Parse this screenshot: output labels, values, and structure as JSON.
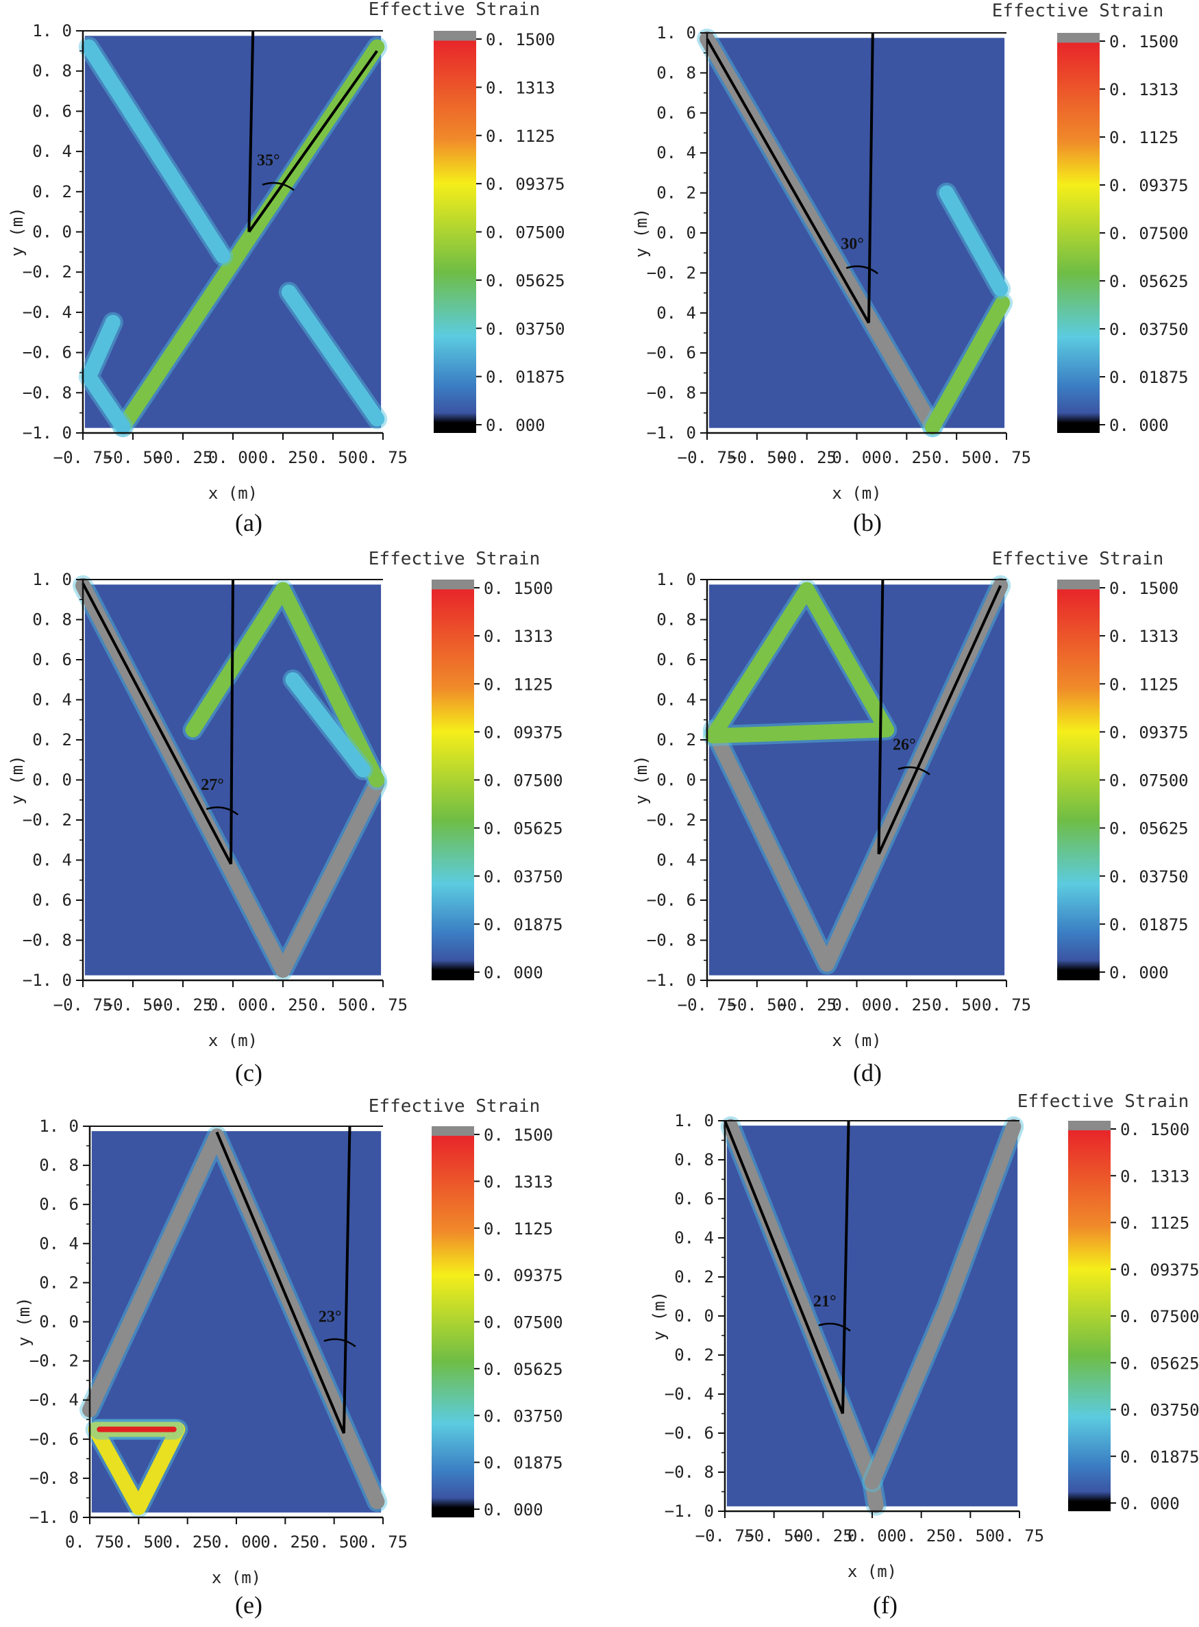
{
  "colors": {
    "background": "#3b55a3",
    "band_gray": "#8c8c8c",
    "band_green": "#7cc246",
    "band_cyan": "#55c0de",
    "band_yellow": "#e8e020",
    "band_red": "#e02020",
    "reference_line": "#000000",
    "colorbar_stops": [
      "#8a8a8a",
      "#e8262a",
      "#f08a2a",
      "#f5ee1a",
      "#6fbd45",
      "#5ccbe0",
      "#3b7fc4",
      "#3b55a3",
      "#000000"
    ]
  },
  "chart_data": [
    {
      "type": "heatmap",
      "panel": "(a)",
      "colorbar_title": "Effective Strain",
      "xlabel": "x (m)",
      "ylabel": "y (m)",
      "xlim": [
        -0.75,
        0.75
      ],
      "ylim": [
        -1.0,
        1.0
      ],
      "xticks": [
        "−0. 75",
        "−0. 50",
        "−0. 25",
        "0. 00",
        "0. 25",
        "0. 50",
        "0. 75"
      ],
      "yticks": [
        "1. 0",
        "0. 8",
        "0. 6",
        "0. 4",
        "0. 2",
        "0. 0",
        "−0. 2",
        "−0. 4",
        "−0. 6",
        "−0. 8",
        "−1. 0"
      ],
      "colorbar_ticks": [
        "0. 1500",
        "0. 1313",
        "0. 1125",
        "0. 09375",
        "0. 07500",
        "0. 05625",
        "0. 03750",
        "0. 01875",
        "0. 000"
      ],
      "colorbar_range": [
        0.0,
        0.15
      ],
      "angle_label": "35°",
      "angle_deg": 35,
      "angle_pos": [
        0.12,
        0.33
      ],
      "bands": [
        {
          "color": "band_green",
          "level": 0.08,
          "points": [
            [
              0.72,
              0.92
            ],
            [
              -0.55,
              -0.97
            ]
          ]
        },
        {
          "color": "band_cyan",
          "level": 0.05,
          "points": [
            [
              -0.72,
              0.92
            ],
            [
              -0.05,
              -0.12
            ]
          ]
        },
        {
          "color": "band_cyan",
          "level": 0.04,
          "points": [
            [
              0.28,
              -0.3
            ],
            [
              0.72,
              -0.93
            ]
          ]
        },
        {
          "color": "band_cyan",
          "level": 0.04,
          "points": [
            [
              -0.55,
              -0.97
            ],
            [
              -0.72,
              -0.72
            ],
            [
              -0.6,
              -0.45
            ]
          ]
        }
      ],
      "reference_lines": [
        [
          [
            0.1,
            1.0
          ],
          [
            0.08,
            0.0
          ]
        ],
        [
          [
            0.08,
            0.0
          ],
          [
            0.72,
            0.9
          ]
        ]
      ]
    },
    {
      "type": "heatmap",
      "panel": "(b)",
      "colorbar_title": "Effective Strain",
      "xlabel": "x (m)",
      "ylabel": "y (m)",
      "xlim": [
        -0.75,
        0.75
      ],
      "ylim": [
        -1.0,
        1.0
      ],
      "xticks": [
        "−0. 75",
        "−0. 50",
        "−0. 25",
        "0. 00",
        "0. 25",
        "0. 50",
        "0. 75"
      ],
      "yticks": [
        "1. 0",
        "0. 8",
        "0. 6",
        "0. 4",
        "0. 2",
        "0. 0",
        "−0. 2",
        "0. 4",
        "−0. 6",
        "−0. 8",
        "−1. 0"
      ],
      "colorbar_ticks": [
        "0. 1500",
        "0. 1313",
        "0. 1125",
        "0. 09375",
        "0. 07500",
        "0. 05625",
        "0. 03750",
        "0. 01875",
        "0. 000"
      ],
      "colorbar_range": [
        0.0,
        0.15
      ],
      "angle_label": "30°",
      "angle_deg": 30,
      "angle_pos": [
        -0.08,
        -0.08
      ],
      "bands": [
        {
          "color": "band_gray",
          "level": 0.14,
          "points": [
            [
              -0.75,
              0.97
            ],
            [
              0.38,
              -0.97
            ]
          ]
        },
        {
          "color": "band_green",
          "level": 0.09,
          "points": [
            [
              0.38,
              -0.97
            ],
            [
              0.73,
              -0.35
            ]
          ]
        },
        {
          "color": "band_cyan",
          "level": 0.04,
          "points": [
            [
              0.45,
              0.2
            ],
            [
              0.72,
              -0.28
            ]
          ]
        }
      ],
      "reference_lines": [
        [
          [
            0.08,
            1.0
          ],
          [
            0.06,
            -0.45
          ]
        ],
        [
          [
            -0.75,
            0.97
          ],
          [
            0.06,
            -0.45
          ]
        ]
      ]
    },
    {
      "type": "heatmap",
      "panel": "(c)",
      "colorbar_title": "Effective Strain",
      "xlabel": "x (m)",
      "ylabel": "y (m)",
      "xlim": [
        -0.75,
        0.75
      ],
      "ylim": [
        -1.0,
        1.0
      ],
      "xticks": [
        "−0. 75",
        "−0. 50",
        "−0. 25",
        "0. 00",
        "0. 25",
        "0. 50",
        "0. 75"
      ],
      "yticks": [
        "1. 0",
        "0. 8",
        "0. 6",
        "0. 4",
        "0. 2",
        "0. 0",
        "−0. 2",
        "0. 4",
        "0. 6",
        "−0. 8",
        "−1. 0"
      ],
      "colorbar_ticks": [
        "0. 1500",
        "0. 1313",
        "0. 1125",
        "0. 09375",
        "0. 07500",
        "0. 05625",
        "0. 03750",
        "0. 01875",
        "0. 000"
      ],
      "colorbar_range": [
        0.0,
        0.15
      ],
      "angle_label": "27°",
      "angle_deg": 27,
      "angle_pos": [
        -0.16,
        -0.05
      ],
      "bands": [
        {
          "color": "band_gray",
          "level": 0.15,
          "points": [
            [
              -0.75,
              0.97
            ],
            [
              0.25,
              -0.95
            ],
            [
              0.72,
              -0.02
            ]
          ]
        },
        {
          "color": "band_green",
          "level": 0.07,
          "points": [
            [
              0.72,
              0.0
            ],
            [
              0.25,
              0.95
            ],
            [
              -0.2,
              0.25
            ]
          ]
        },
        {
          "color": "band_cyan",
          "level": 0.04,
          "points": [
            [
              0.3,
              0.5
            ],
            [
              0.65,
              0.05
            ]
          ]
        }
      ],
      "reference_lines": [
        [
          [
            0.0,
            1.0
          ],
          [
            -0.01,
            -0.42
          ]
        ],
        [
          [
            -0.75,
            0.98
          ],
          [
            -0.01,
            -0.42
          ]
        ]
      ]
    },
    {
      "type": "heatmap",
      "panel": "(d)",
      "colorbar_title": "Effective Strain",
      "xlabel": "x (m)",
      "ylabel": "y (m)",
      "xlim": [
        -0.75,
        0.75
      ],
      "ylim": [
        -1.0,
        1.0
      ],
      "xticks": [
        "−0. 75",
        "−0. 50",
        "−0. 25",
        "0. 00",
        "0. 25",
        "0. 50",
        "0. 75"
      ],
      "yticks": [
        "1. 0",
        "0. 8",
        "0. 6",
        "0. 4",
        "0. 2",
        "0. 0",
        "−0. 2",
        "0. 4",
        "−0. 6",
        "−0. 8",
        "−1. 0"
      ],
      "colorbar_ticks": [
        "0. 1500",
        "0. 1313",
        "0. 1125",
        "0. 09375",
        "0. 07500",
        "0. 05625",
        "0. 03750",
        "0. 01875",
        "0. 000"
      ],
      "colorbar_range": [
        0.0,
        0.15
      ],
      "angle_label": "26°",
      "angle_deg": 26,
      "angle_pos": [
        0.18,
        0.15
      ],
      "bands": [
        {
          "color": "band_gray",
          "level": 0.15,
          "points": [
            [
              -0.72,
              0.25
            ],
            [
              -0.15,
              -0.92
            ],
            [
              0.72,
              0.97
            ]
          ]
        },
        {
          "color": "band_green",
          "level": 0.08,
          "points": [
            [
              -0.72,
              0.22
            ],
            [
              -0.25,
              0.95
            ],
            [
              0.15,
              0.25
            ],
            [
              -0.72,
              0.22
            ]
          ]
        }
      ],
      "reference_lines": [
        [
          [
            0.13,
            1.0
          ],
          [
            0.11,
            -0.37
          ]
        ],
        [
          [
            0.11,
            -0.37
          ],
          [
            0.72,
            0.97
          ]
        ]
      ]
    },
    {
      "type": "heatmap",
      "panel": "(e)",
      "colorbar_title": "Effective Strain",
      "xlabel": "x (m)",
      "ylabel": "y (m)",
      "xlim": [
        -0.75,
        0.75
      ],
      "ylim": [
        -1.0,
        1.0
      ],
      "xticks": [
        "0. 75",
        "0. 50",
        "0. 25",
        "0. 00",
        "0. 25",
        "0. 50",
        "0. 75"
      ],
      "yticks": [
        "1. 0",
        "0. 8",
        "0. 6",
        "0. 4",
        "0. 2",
        "0. 0",
        "−0. 2",
        "−0. 4",
        "−0. 6",
        "−0. 8",
        "−1. 0"
      ],
      "colorbar_ticks": [
        "0. 1500",
        "0. 1313",
        "0. 1125",
        "0. 09375",
        "0. 07500",
        "0. 05625",
        "0. 03750",
        "0. 01875",
        "0. 000"
      ],
      "colorbar_range": [
        0.0,
        0.15
      ],
      "angle_label": "23°",
      "angle_deg": 23,
      "angle_pos": [
        0.42,
        0.0
      ],
      "bands": [
        {
          "color": "band_gray",
          "level": 0.15,
          "points": [
            [
              -0.75,
              -0.45
            ],
            [
              -0.1,
              0.95
            ],
            [
              0.72,
              -0.92
            ]
          ]
        },
        {
          "color": "band_yellow",
          "level": 0.11,
          "points": [
            [
              -0.72,
              -0.55
            ],
            [
              -0.3,
              -0.55
            ],
            [
              -0.5,
              -0.95
            ],
            [
              -0.72,
              -0.55
            ]
          ]
        },
        {
          "color": "band_red",
          "level": 0.14,
          "points": [
            [
              -0.7,
              -0.55
            ],
            [
              -0.32,
              -0.55
            ]
          ]
        }
      ],
      "reference_lines": [
        [
          [
            0.58,
            1.0
          ],
          [
            0.55,
            -0.57
          ]
        ],
        [
          [
            -0.1,
            0.97
          ],
          [
            0.55,
            -0.57
          ]
        ]
      ]
    },
    {
      "type": "heatmap",
      "panel": "(f)",
      "colorbar_title": "Effective Strain",
      "xlabel": "x (m)",
      "ylabel": "y (m)",
      "xlim": [
        -0.75,
        0.75
      ],
      "ylim": [
        -1.0,
        1.0
      ],
      "xticks": [
        "−0. 75",
        "−0. 50",
        "−0. 25",
        "0. 00",
        "0. 25",
        "0. 50",
        "0. 75"
      ],
      "yticks": [
        "1. 0",
        "0. 8",
        "0. 6",
        "0. 4",
        "0. 2",
        "0. 0",
        "0. 2",
        "−0. 4",
        "−0. 6",
        "−0. 8",
        "−1. 0"
      ],
      "colorbar_ticks": [
        "0. 1500",
        "0. 1313",
        "0. 1125",
        "0. 09375",
        "0. 07500",
        "0. 05625",
        "0. 03750",
        "0. 01875",
        "0. 000"
      ],
      "colorbar_range": [
        0.0,
        0.15
      ],
      "angle_label": "21°",
      "angle_deg": 21,
      "angle_pos": [
        -0.3,
        0.05
      ],
      "bands": [
        {
          "color": "band_gray",
          "level": 0.15,
          "points": [
            [
              -0.72,
              0.97
            ],
            [
              0.0,
              -0.85
            ],
            [
              0.02,
              -0.97
            ]
          ]
        },
        {
          "color": "band_gray",
          "level": 0.15,
          "points": [
            [
              0.72,
              0.97
            ],
            [
              0.38,
              0.05
            ],
            [
              0.0,
              -0.85
            ]
          ]
        }
      ],
      "reference_lines": [
        [
          [
            -0.12,
            1.0
          ],
          [
            -0.15,
            -0.5
          ]
        ],
        [
          [
            -0.75,
            1.0
          ],
          [
            -0.15,
            -0.5
          ]
        ]
      ]
    }
  ]
}
